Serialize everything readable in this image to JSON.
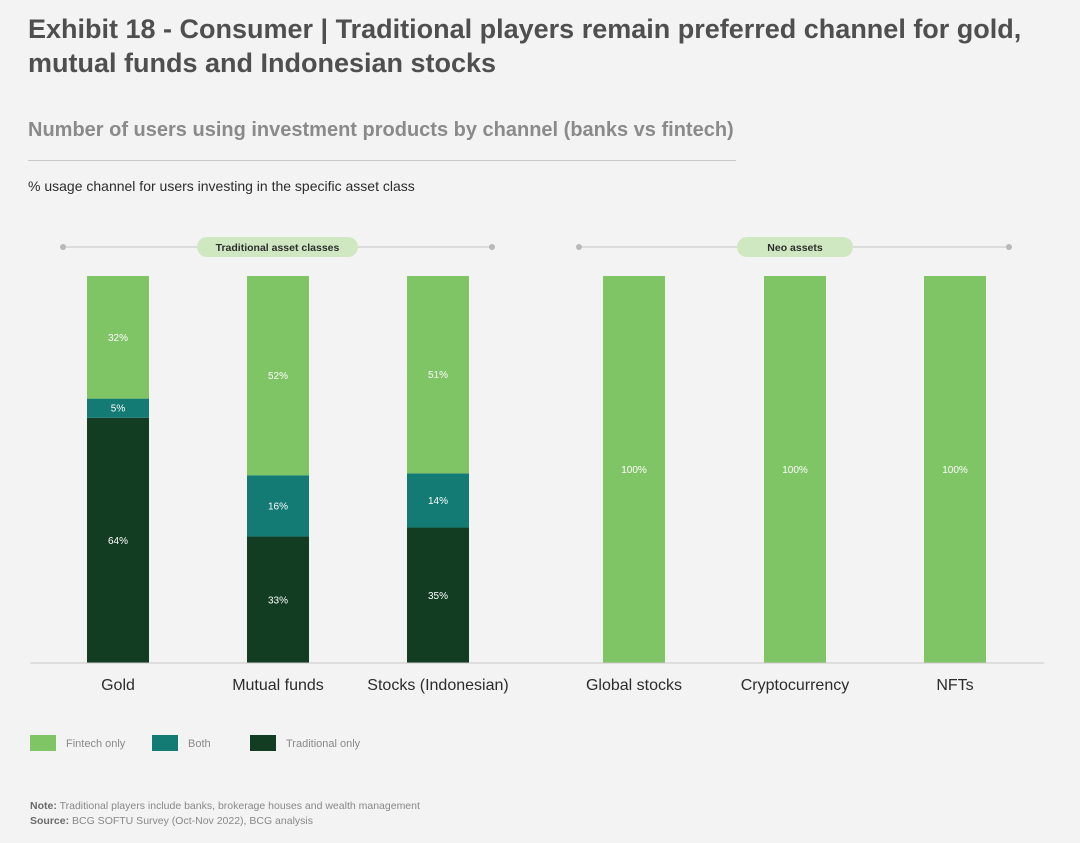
{
  "header": {
    "title": "Exhibit 18 - Consumer | Traditional players remain preferred channel for gold, mutual funds and Indonesian stocks",
    "subtitle": "Number of users using investment products by channel (banks vs fintech)",
    "unit_label": "% usage channel for users investing in the specific asset class"
  },
  "groups": [
    {
      "label": "Traditional asset classes"
    },
    {
      "label": "Neo assets"
    }
  ],
  "chart_data": {
    "type": "bar",
    "stacked": true,
    "title": "Number of users using investment products by channel (banks vs fintech)",
    "ylabel": "% usage channel for users investing in the specific asset class",
    "ylim": [
      0,
      100
    ],
    "grid": false,
    "legend_position": "bottom-left",
    "categories": [
      "Gold",
      "Mutual funds",
      "Stocks (Indonesian)",
      "Global stocks",
      "Cryptocurrency",
      "NFTs"
    ],
    "series": [
      {
        "name": "Traditional only",
        "color": "#133d22",
        "values": [
          64,
          33,
          35,
          0,
          0,
          0
        ]
      },
      {
        "name": "Both",
        "color": "#137a74",
        "values": [
          5,
          16,
          14,
          0,
          0,
          0
        ]
      },
      {
        "name": "Fintech only",
        "color": "#80c565",
        "values": [
          32,
          52,
          51,
          100,
          100,
          100
        ]
      }
    ],
    "data_labels": [
      [
        "64%",
        "33%",
        "35%",
        "",
        "",
        ""
      ],
      [
        "5%",
        "16%",
        "14%",
        "",
        "",
        ""
      ],
      [
        "32%",
        "52%",
        "51%",
        "100%",
        "100%",
        "100%"
      ]
    ],
    "legend": [
      {
        "name": "Fintech only",
        "color": "#80c565"
      },
      {
        "name": "Both",
        "color": "#137a74"
      },
      {
        "name": "Traditional only",
        "color": "#133d22"
      }
    ]
  },
  "footer": {
    "note_label": "Note:",
    "note_text": "Traditional players include banks, brokerage houses and wealth management",
    "source_label": "Source:",
    "source_text": "BCG SOFTU Survey (Oct-Nov 2022), BCG analysis"
  }
}
